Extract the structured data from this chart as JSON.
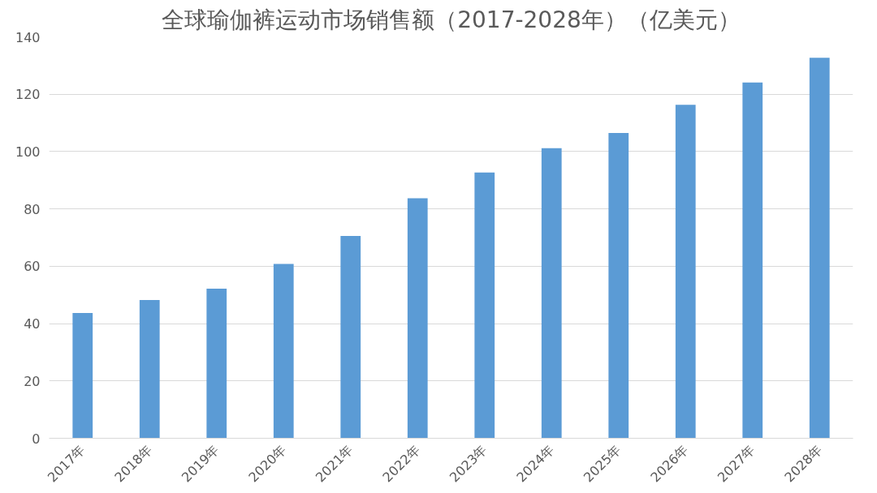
{
  "chart_data": {
    "type": "bar",
    "title": "全球瑜伽裤运动市场销售额（2017-2028年）（亿美元）",
    "categories": [
      "2017年",
      "2018年",
      "2019年",
      "2020年",
      "2021年",
      "2022年",
      "2023年",
      "2024年",
      "2025年",
      "2026年",
      "2027年",
      "2028年"
    ],
    "values": [
      43.7,
      48.2,
      52.2,
      60.8,
      70.6,
      83.7,
      92.7,
      101.2,
      106.5,
      116.3,
      124.1,
      132.7
    ],
    "color": "#5b9bd5",
    "ylim": [
      0,
      140
    ],
    "yticks": [
      0,
      20,
      40,
      60,
      80,
      100,
      120,
      140
    ],
    "grid": "y"
  }
}
